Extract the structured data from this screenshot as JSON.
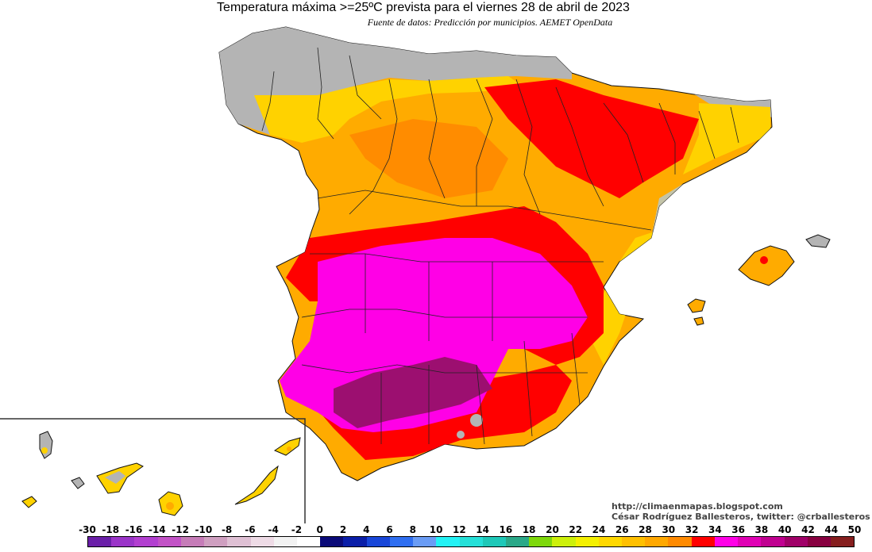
{
  "header": {
    "title": "Temperatura máxima >=25ºC prevista para el viernes 28 de abril de 2023",
    "subtitle": "Fuente de datos: Predicción por municipios. AEMET OpenData"
  },
  "credits": {
    "url": "http://climaenmapas.blogspot.com",
    "author": "César Rodríguez Ballesteros, twitter: @crballesteros"
  },
  "legend": {
    "labels": [
      "-30",
      "-18",
      "-16",
      "-14",
      "-12",
      "-10",
      "-8",
      "-6",
      "-4",
      "-2",
      "0",
      "2",
      "4",
      "6",
      "8",
      "10",
      "12",
      "14",
      "16",
      "18",
      "20",
      "22",
      "24",
      "26",
      "28",
      "30",
      "32",
      "34",
      "36",
      "38",
      "40",
      "42",
      "44",
      "50"
    ],
    "colors": [
      "#6a1fa8",
      "#9a34c8",
      "#b23fd0",
      "#c252c6",
      "#c67cb8",
      "#cf9fc0",
      "#dfc0d4",
      "#eedbe6",
      "#f2f2f2",
      "#ffffff",
      "#0a0a78",
      "#0a1ea8",
      "#1846d8",
      "#2f6ef0",
      "#6a9cf5",
      "#23f2f5",
      "#25e0d8",
      "#1ec8b8",
      "#2aa888",
      "#7ed80a",
      "#cdf00a",
      "#f4f000",
      "#ffd800",
      "#ffc000",
      "#ffa800",
      "#ff8a00",
      "#ff0000",
      "#ff00e6",
      "#e000b4",
      "#c00090",
      "#a00068",
      "#880040",
      "#861e1e"
    ]
  },
  "map_layers": {
    "iberia": [
      "#b4b4b4",
      "#ffd200",
      "#ffab00",
      "#ff8c00",
      "#ff0000",
      "#ff00e6",
      "#9c0f70"
    ],
    "islands": [
      "#b4b4b4",
      "#ffd200",
      "#ffab00",
      "#ff8c00"
    ]
  }
}
